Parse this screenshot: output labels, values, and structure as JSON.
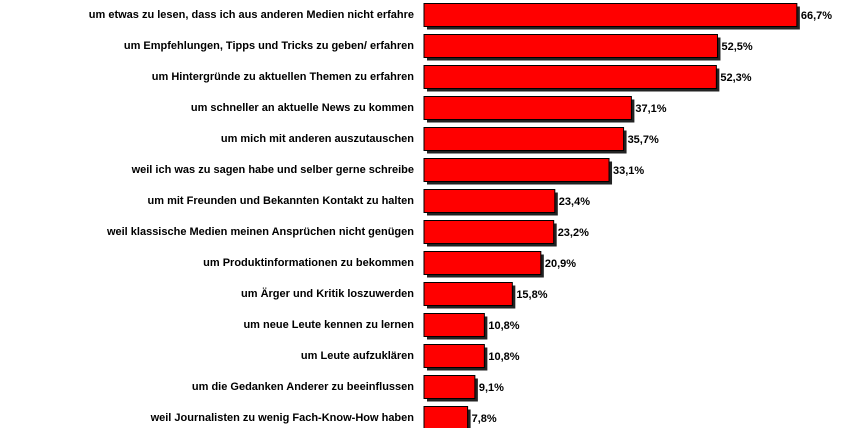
{
  "chart_data": {
    "type": "bar",
    "orientation": "horizontal",
    "categories": [
      "um etwas zu lesen, dass ich aus anderen Medien nicht erfahre",
      "um Empfehlungen, Tipps und Tricks zu geben/ erfahren",
      "um Hintergründe zu aktuellen Themen zu erfahren",
      "um schneller an aktuelle News zu kommen",
      "um mich mit anderen auszutauschen",
      "weil ich was zu sagen habe und selber gerne schreibe",
      "um mit Freunden und Bekannten Kontakt zu halten",
      "weil klassische Medien meinen Ansprüchen nicht genügen",
      "um Produktinformationen zu bekommen",
      "um Ärger und Kritik loszuwerden",
      "um neue Leute kennen zu lernen",
      "um Leute aufzuklären",
      "um die Gedanken Anderer zu beeinflussen",
      "weil Journalisten zu wenig Fach-Know-How haben"
    ],
    "values": [
      66.7,
      52.5,
      52.3,
      37.1,
      35.7,
      33.1,
      23.4,
      23.2,
      20.9,
      15.8,
      10.8,
      10.8,
      9.1,
      7.8
    ],
    "value_labels": [
      "66,7%",
      "52,5%",
      "52,3%",
      "37,1%",
      "35,7%",
      "33,1%",
      "23,4%",
      "23,2%",
      "20,9%",
      "15,8%",
      "10,8%",
      "10,8%",
      "9,1%",
      "7,8%"
    ],
    "color": "#ff0000"
  }
}
